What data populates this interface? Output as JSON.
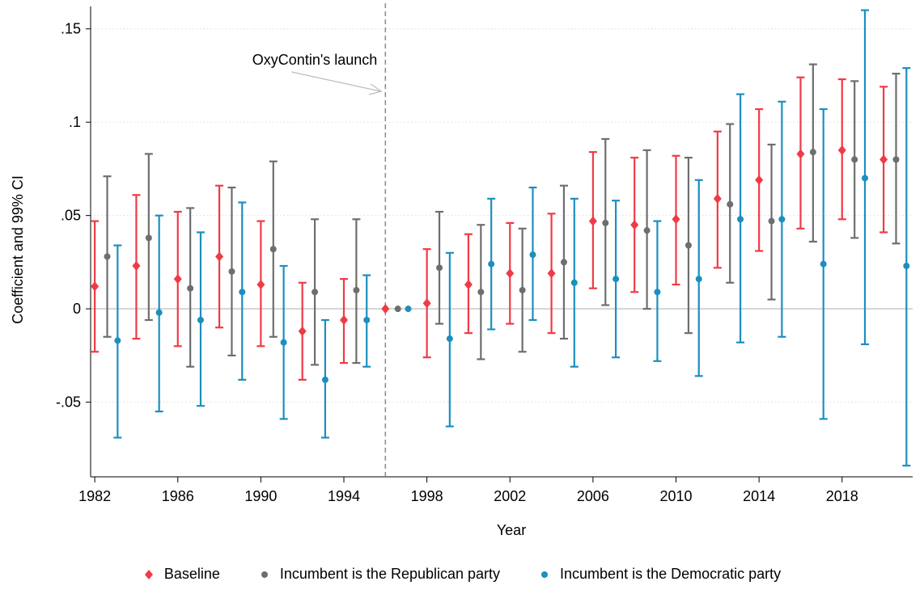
{
  "chart_data": {
    "type": "scatter",
    "ylabel": "Coefficient and 99% CI",
    "xlabel": "Year",
    "yticks": [
      -0.05,
      0,
      0.05,
      0.1,
      0.15
    ],
    "ytick_labels": [
      "-.05",
      "0",
      ".05",
      ".1",
      ".15"
    ],
    "xticks": [
      1982,
      1986,
      1990,
      1994,
      1998,
      2002,
      2006,
      2010,
      2014,
      2018
    ],
    "xtick_labels": [
      "1982",
      "1986",
      "1990",
      "1994",
      "1998",
      "2002",
      "2006",
      "2010",
      "2014",
      "2018"
    ],
    "xlim": [
      1981.8,
      2021.4
    ],
    "ylim": [
      -0.09,
      0.162
    ],
    "grid": "horizontal dotted",
    "legend_position": "bottom",
    "reference_line": {
      "x": 1996,
      "label": "OxyContin's launch"
    },
    "colors": {
      "baseline": "#ef3b45",
      "republican": "#6e6e6e",
      "democratic": "#1b8fbf"
    },
    "series": [
      {
        "name": "Baseline",
        "marker": "diamond",
        "offset": 0,
        "points": [
          {
            "x": 1982,
            "y": 0.012,
            "lo": -0.023,
            "hi": 0.047
          },
          {
            "x": 1984,
            "y": 0.023,
            "lo": -0.016,
            "hi": 0.061
          },
          {
            "x": 1986,
            "y": 0.016,
            "lo": -0.02,
            "hi": 0.052
          },
          {
            "x": 1988,
            "y": 0.028,
            "lo": -0.01,
            "hi": 0.066
          },
          {
            "x": 1990,
            "y": 0.013,
            "lo": -0.02,
            "hi": 0.047
          },
          {
            "x": 1992,
            "y": -0.012,
            "lo": -0.038,
            "hi": 0.014
          },
          {
            "x": 1994,
            "y": -0.006,
            "lo": -0.029,
            "hi": 0.016
          },
          {
            "x": 1996,
            "y": 0,
            "lo": 0,
            "hi": 0
          },
          {
            "x": 1998,
            "y": 0.003,
            "lo": -0.026,
            "hi": 0.032
          },
          {
            "x": 2000,
            "y": 0.013,
            "lo": -0.013,
            "hi": 0.04
          },
          {
            "x": 2002,
            "y": 0.019,
            "lo": -0.008,
            "hi": 0.046
          },
          {
            "x": 2004,
            "y": 0.019,
            "lo": -0.013,
            "hi": 0.051
          },
          {
            "x": 2006,
            "y": 0.047,
            "lo": 0.011,
            "hi": 0.084
          },
          {
            "x": 2008,
            "y": 0.045,
            "lo": 0.009,
            "hi": 0.081
          },
          {
            "x": 2010,
            "y": 0.048,
            "lo": 0.013,
            "hi": 0.082
          },
          {
            "x": 2012,
            "y": 0.059,
            "lo": 0.022,
            "hi": 0.095
          },
          {
            "x": 2014,
            "y": 0.069,
            "lo": 0.031,
            "hi": 0.107
          },
          {
            "x": 2016,
            "y": 0.083,
            "lo": 0.043,
            "hi": 0.124
          },
          {
            "x": 2018,
            "y": 0.085,
            "lo": 0.048,
            "hi": 0.123
          },
          {
            "x": 2020,
            "y": 0.08,
            "lo": 0.041,
            "hi": 0.119
          }
        ]
      },
      {
        "name": "Incumbent is the Republican party",
        "marker": "circle",
        "offset": 0.6,
        "points": [
          {
            "x": 1982,
            "y": 0.028,
            "lo": -0.015,
            "hi": 0.071
          },
          {
            "x": 1984,
            "y": 0.038,
            "lo": -0.006,
            "hi": 0.083
          },
          {
            "x": 1986,
            "y": 0.011,
            "lo": -0.031,
            "hi": 0.054
          },
          {
            "x": 1988,
            "y": 0.02,
            "lo": -0.025,
            "hi": 0.065
          },
          {
            "x": 1990,
            "y": 0.032,
            "lo": -0.015,
            "hi": 0.079
          },
          {
            "x": 1992,
            "y": 0.009,
            "lo": -0.03,
            "hi": 0.048
          },
          {
            "x": 1994,
            "y": 0.01,
            "lo": -0.029,
            "hi": 0.048
          },
          {
            "x": 1996,
            "y": 0,
            "lo": 0,
            "hi": 0
          },
          {
            "x": 1998,
            "y": 0.022,
            "lo": -0.008,
            "hi": 0.052
          },
          {
            "x": 2000,
            "y": 0.009,
            "lo": -0.027,
            "hi": 0.045
          },
          {
            "x": 2002,
            "y": 0.01,
            "lo": -0.023,
            "hi": 0.043
          },
          {
            "x": 2004,
            "y": 0.025,
            "lo": -0.016,
            "hi": 0.066
          },
          {
            "x": 2006,
            "y": 0.046,
            "lo": 0.002,
            "hi": 0.091
          },
          {
            "x": 2008,
            "y": 0.042,
            "lo": 0.0,
            "hi": 0.085
          },
          {
            "x": 2010,
            "y": 0.034,
            "lo": -0.013,
            "hi": 0.081
          },
          {
            "x": 2012,
            "y": 0.056,
            "lo": 0.014,
            "hi": 0.099
          },
          {
            "x": 2014,
            "y": 0.047,
            "lo": 0.005,
            "hi": 0.088
          },
          {
            "x": 2016,
            "y": 0.084,
            "lo": 0.036,
            "hi": 0.131
          },
          {
            "x": 2018,
            "y": 0.08,
            "lo": 0.038,
            "hi": 0.122
          },
          {
            "x": 2020,
            "y": 0.08,
            "lo": 0.035,
            "hi": 0.126
          }
        ]
      },
      {
        "name": "Incumbent is the Democratic party",
        "marker": "circle",
        "offset": 1.1,
        "points": [
          {
            "x": 1982,
            "y": -0.017,
            "lo": -0.069,
            "hi": 0.034
          },
          {
            "x": 1984,
            "y": -0.002,
            "lo": -0.055,
            "hi": 0.05
          },
          {
            "x": 1986,
            "y": -0.006,
            "lo": -0.052,
            "hi": 0.041
          },
          {
            "x": 1988,
            "y": 0.009,
            "lo": -0.038,
            "hi": 0.057
          },
          {
            "x": 1990,
            "y": -0.018,
            "lo": -0.059,
            "hi": 0.023
          },
          {
            "x": 1992,
            "y": -0.038,
            "lo": -0.069,
            "hi": -0.006
          },
          {
            "x": 1994,
            "y": -0.006,
            "lo": -0.031,
            "hi": 0.018
          },
          {
            "x": 1996,
            "y": 0,
            "lo": 0,
            "hi": 0
          },
          {
            "x": 1998,
            "y": -0.016,
            "lo": -0.063,
            "hi": 0.03
          },
          {
            "x": 2000,
            "y": 0.024,
            "lo": -0.011,
            "hi": 0.059
          },
          {
            "x": 2002,
            "y": 0.029,
            "lo": -0.006,
            "hi": 0.065
          },
          {
            "x": 2004,
            "y": 0.014,
            "lo": -0.031,
            "hi": 0.059
          },
          {
            "x": 2006,
            "y": 0.016,
            "lo": -0.026,
            "hi": 0.058
          },
          {
            "x": 2008,
            "y": 0.009,
            "lo": -0.028,
            "hi": 0.047
          },
          {
            "x": 2010,
            "y": 0.016,
            "lo": -0.036,
            "hi": 0.069
          },
          {
            "x": 2012,
            "y": 0.048,
            "lo": -0.018,
            "hi": 0.115
          },
          {
            "x": 2014,
            "y": 0.048,
            "lo": -0.015,
            "hi": 0.111
          },
          {
            "x": 2016,
            "y": 0.024,
            "lo": -0.059,
            "hi": 0.107
          },
          {
            "x": 2018,
            "y": 0.07,
            "lo": -0.019,
            "hi": 0.16
          },
          {
            "x": 2020,
            "y": 0.023,
            "lo": -0.084,
            "hi": 0.129
          }
        ]
      }
    ]
  }
}
